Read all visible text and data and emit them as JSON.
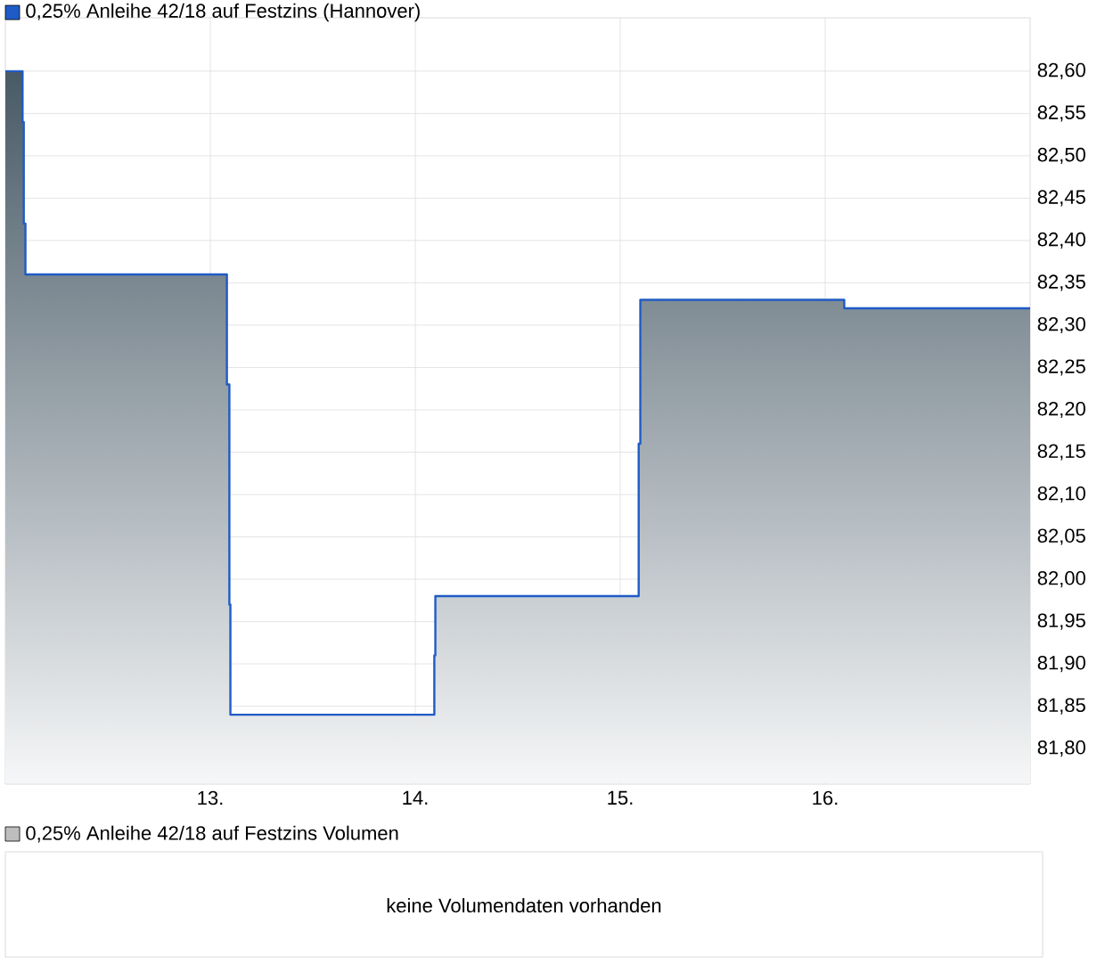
{
  "chart_data": [
    {
      "type": "step",
      "x": [
        12.0,
        12.084,
        12.09,
        12.098,
        13.081,
        13.093,
        13.098,
        14.093,
        14.098,
        15.09,
        15.098,
        16.093,
        17.0
      ],
      "series": [
        {
          "name": "0,25% Anleihe 42/18 auf Festzins (Hannover)",
          "color": "#1f5bc6",
          "values": [
            82.6,
            82.54,
            82.42,
            82.36,
            82.23,
            81.97,
            81.84,
            81.91,
            81.98,
            82.16,
            82.33,
            82.32,
            82.32
          ]
        }
      ],
      "xlim": [
        12,
        17
      ],
      "ylim": [
        81.758,
        82.663
      ],
      "xticks": [
        {
          "value": 13,
          "label": "13."
        },
        {
          "value": 14,
          "label": "14."
        },
        {
          "value": 15,
          "label": "15."
        },
        {
          "value": 16,
          "label": "16."
        }
      ],
      "yticks": [
        {
          "value": 81.8,
          "label": "81,80"
        },
        {
          "value": 81.85,
          "label": "81,85"
        },
        {
          "value": 81.9,
          "label": "81,90"
        },
        {
          "value": 81.95,
          "label": "81,95"
        },
        {
          "value": 82.0,
          "label": "82,00"
        },
        {
          "value": 82.05,
          "label": "82,05"
        },
        {
          "value": 82.1,
          "label": "82,10"
        },
        {
          "value": 82.15,
          "label": "82,15"
        },
        {
          "value": 82.2,
          "label": "82,20"
        },
        {
          "value": 82.25,
          "label": "82,25"
        },
        {
          "value": 82.3,
          "label": "82,30"
        },
        {
          "value": 82.35,
          "label": "82,35"
        },
        {
          "value": 82.4,
          "label": "82,40"
        },
        {
          "value": 82.45,
          "label": "82,45"
        },
        {
          "value": 82.5,
          "label": "82,50"
        },
        {
          "value": 82.55,
          "label": "82,55"
        },
        {
          "value": 82.6,
          "label": "82,60"
        }
      ],
      "grid": true,
      "legend": "top left"
    },
    {
      "type": "other",
      "title": "0,25% Anleihe 42/18 auf Festzins Volumen",
      "annotations": [
        "keine Volumendaten vorhanden"
      ]
    }
  ]
}
